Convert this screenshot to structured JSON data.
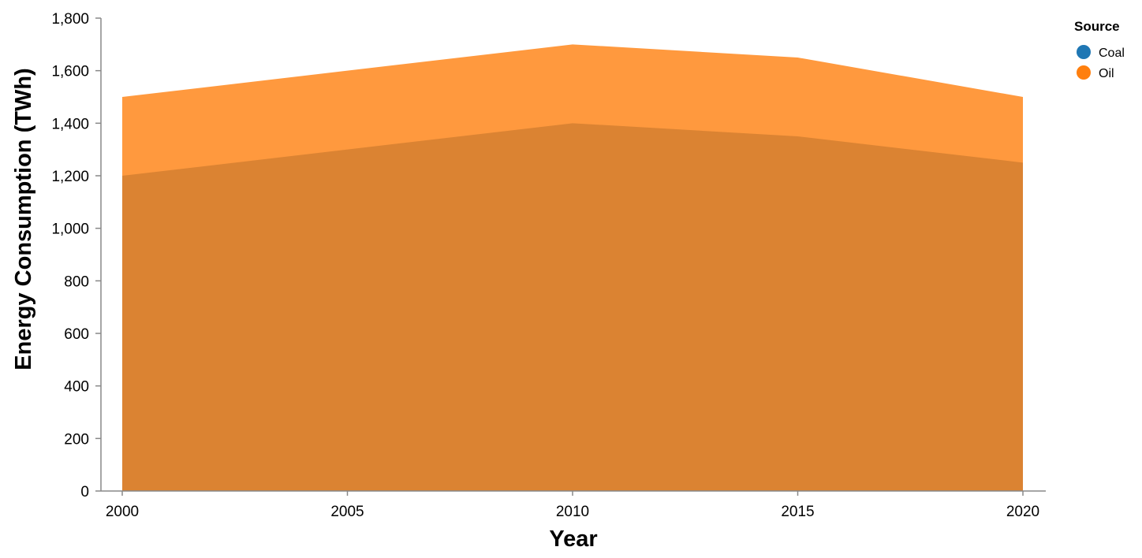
{
  "chart_data": {
    "type": "area",
    "stacked": false,
    "x": [
      2000,
      2005,
      2010,
      2015,
      2020
    ],
    "x_ticks": [
      2000,
      2005,
      2010,
      2015,
      2020
    ],
    "xlabel": "Year",
    "ylabel": "Energy Consumption (TWh)",
    "ylim": [
      0,
      1800
    ],
    "y_ticks": [
      0,
      200,
      400,
      600,
      800,
      1000,
      1200,
      1400,
      1600,
      1800
    ],
    "grid": false,
    "legend": {
      "title": "Source",
      "placement": "top-right"
    },
    "series": [
      {
        "name": "Coal",
        "x": [
          2000,
          2010,
          2015,
          2020
        ],
        "values": [
          1200,
          1400,
          1350,
          1250
        ],
        "color": "#1f77b4"
      },
      {
        "name": "Oil",
        "x": [
          2000,
          2005,
          2010,
          2015,
          2020
        ],
        "values": [
          1500,
          1600,
          1700,
          1650,
          1500
        ],
        "color": "#ff7f0e"
      }
    ]
  }
}
